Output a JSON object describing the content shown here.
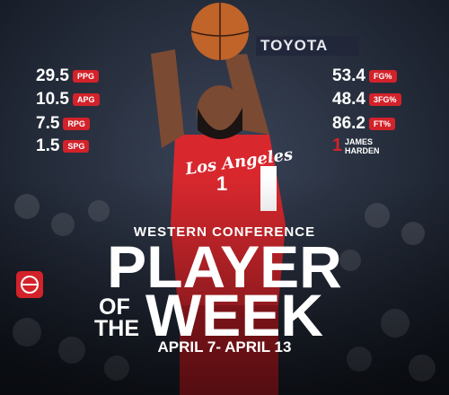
{
  "sponsor": "TOYOTA",
  "stats_left": [
    {
      "value": "29.5",
      "unit": "PPG"
    },
    {
      "value": "10.5",
      "unit": "APG"
    },
    {
      "value": "7.5",
      "unit": "RPG"
    },
    {
      "value": "1.5",
      "unit": "SPG"
    }
  ],
  "stats_right": [
    {
      "value": "53.4",
      "unit": "FG%"
    },
    {
      "value": "48.4",
      "unit": "3FG%"
    },
    {
      "value": "86.2",
      "unit": "FT%"
    }
  ],
  "player": {
    "number": "1",
    "first_name": "JAMES",
    "last_name": "HARDEN",
    "jersey_text": "Los Angeles",
    "jersey_number": "1"
  },
  "conference": "WESTERN CONFERENCE",
  "title": {
    "line1": "PLAYER",
    "of": "OF",
    "the": "THE",
    "line2": "WEEK"
  },
  "dates": "APRIL 7- APRIL 13"
}
